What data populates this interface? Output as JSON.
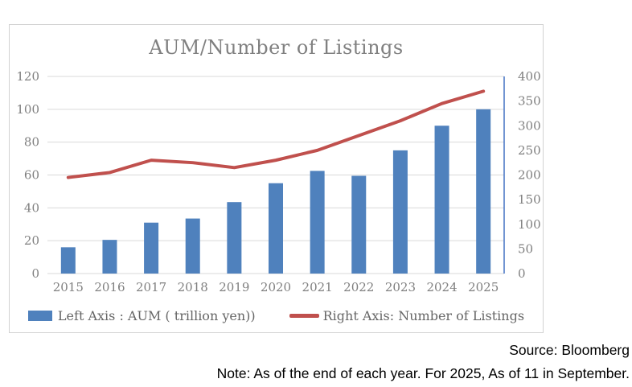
{
  "page": {
    "source_text": "Source: Bloomberg",
    "note_text": "Note: As of the end of each year. For 2025, As of 11 in September."
  },
  "chart_data": {
    "type": "combo-bar-line",
    "title": "AUM/Number of Listings",
    "categories": [
      "2015",
      "2016",
      "2017",
      "2018",
      "2019",
      "2020",
      "2021",
      "2022",
      "2023",
      "2024",
      "2025"
    ],
    "series": [
      {
        "name": "Left Axis : AUM ( trillion yen))",
        "type": "bar",
        "axis": "left",
        "color": "#4f81bd",
        "values": [
          16,
          20.5,
          31,
          33.5,
          43.5,
          55,
          62.5,
          59.5,
          75,
          90,
          100
        ]
      },
      {
        "name": "Right Axis: Number of Listings",
        "type": "line",
        "axis": "right",
        "color": "#c0504d",
        "values": [
          195,
          205,
          230,
          225,
          215,
          230,
          250,
          280,
          310,
          345,
          370
        ]
      }
    ],
    "left_axis": {
      "min": 0,
      "max": 120,
      "step": 20,
      "ticks": [
        0,
        20,
        40,
        60,
        80,
        100,
        120
      ]
    },
    "right_axis": {
      "min": 0,
      "max": 400,
      "step": 50,
      "ticks": [
        0,
        50,
        100,
        150,
        200,
        250,
        300,
        350,
        400
      ],
      "line_color": "#4472c4"
    },
    "grid": true,
    "grid_color": "#d9d9d9",
    "text_color": "#7f7f7f",
    "legend_position": "bottom"
  }
}
